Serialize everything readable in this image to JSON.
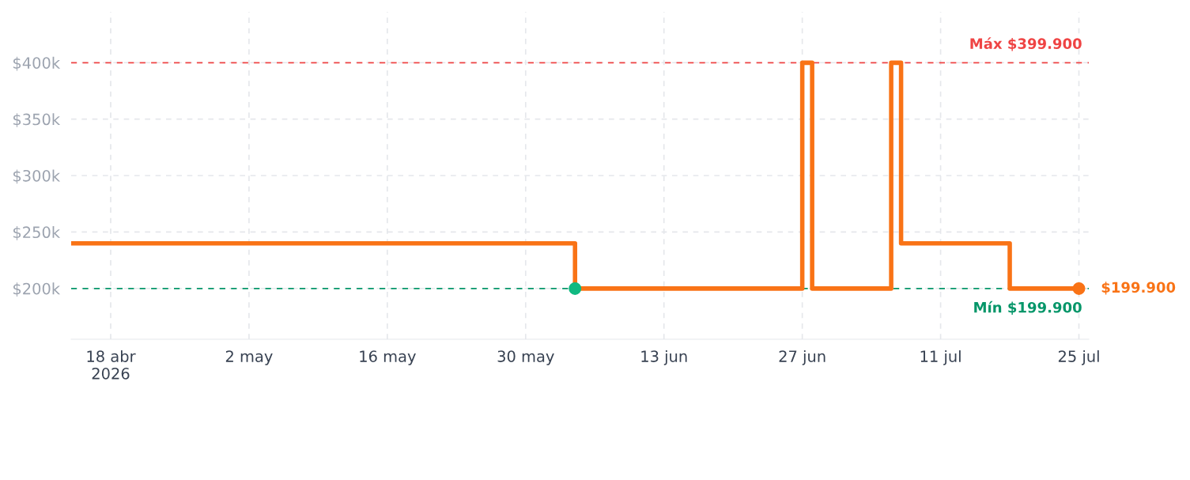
{
  "chart_data": {
    "type": "step",
    "series": [
      {
        "color": "#f97316",
        "x": [
          "2026-04-14",
          "2026-06-04",
          "2026-06-27",
          "2026-06-28",
          "2026-07-06",
          "2026-07-07",
          "2026-07-18",
          "2026-07-25"
        ],
        "values": [
          239900,
          199900,
          399900,
          199900,
          399900,
          239900,
          199900,
          199900
        ]
      },
      {
        "type": "scatter",
        "color": "#f97316",
        "marker": "circle",
        "x": [
          "2026-07-25"
        ],
        "values": [
          199900
        ]
      },
      {
        "type": "scatter",
        "color": "#10b981",
        "marker": "circle",
        "x": [
          "2026-06-04"
        ],
        "values": [
          199900
        ]
      }
    ],
    "xlim": [
      "2026-04-14",
      "2026-07-26"
    ],
    "xticks": [
      {
        "value": "2026-04-18",
        "label": "18 abr\n2026"
      },
      {
        "value": "2026-05-02",
        "label": "2 may"
      },
      {
        "value": "2026-05-16",
        "label": "16 may"
      },
      {
        "value": "2026-05-30",
        "label": "30 may"
      },
      {
        "value": "2026-06-13",
        "label": "13 jun"
      },
      {
        "value": "2026-06-27",
        "label": "27 jun"
      },
      {
        "value": "2026-07-11",
        "label": "11 jul"
      },
      {
        "value": "2026-07-25",
        "label": "25 jul"
      }
    ],
    "ylim": [
      155000,
      445000
    ],
    "yticks": [
      {
        "value": 200000,
        "label": "$200k"
      },
      {
        "value": 250000,
        "label": "$250k"
      },
      {
        "value": 300000,
        "label": "$300k"
      },
      {
        "value": 350000,
        "label": "$350k"
      },
      {
        "value": 400000,
        "label": "$400k"
      }
    ],
    "grid": true,
    "ref_lines": [
      {
        "axis": "y",
        "value": 399900,
        "label": "Máx $399.900",
        "color": "#ef4444",
        "line_style": "dashed"
      },
      {
        "axis": "y",
        "value": 199900,
        "label": "Mín $199.900",
        "color": "#059669",
        "line_style": "dashed"
      }
    ],
    "annotations": [
      {
        "text": "$199.900",
        "x": "2026-07-25",
        "y": 199900
      }
    ]
  }
}
